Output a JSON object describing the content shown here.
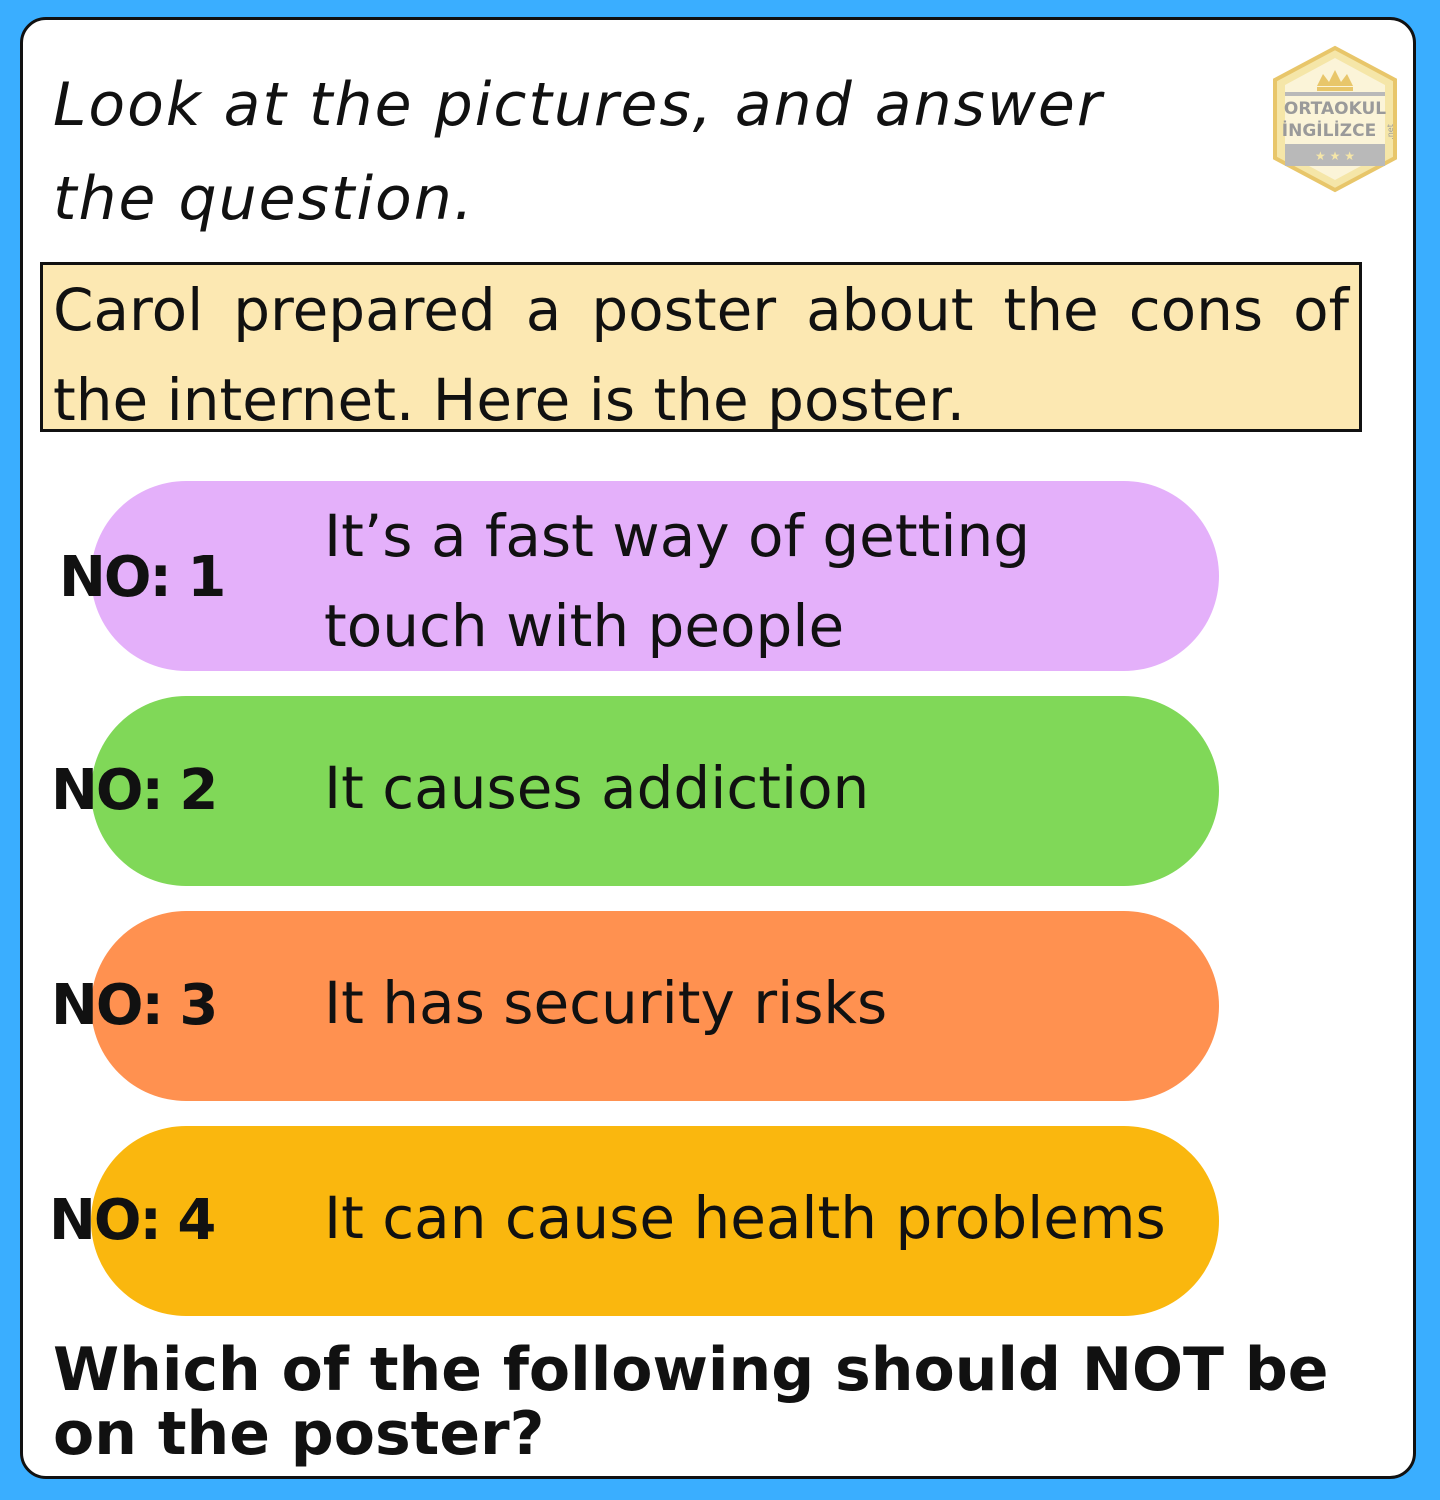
{
  "instruction": "Look at the pictures, and answer the question.",
  "logo": {
    "line1": "ORTAOKUL",
    "line2": "İNGİLİZCE",
    "suffix": ".net",
    "colors": {
      "hex": "#f5e6a8",
      "stroke": "#e8c66a",
      "band": "#b9b9b9"
    }
  },
  "context": "Carol prepared a poster about the cons of the internet. Here is the poster.",
  "options": [
    {
      "label": "NO: 1",
      "text_line1": "It’s a fast way of getting",
      "text_line2": "touch with people",
      "color": "#e4b0fa"
    },
    {
      "label": "NO: 2",
      "text": "It causes addiction",
      "color": "#80d858"
    },
    {
      "label": "NO: 3",
      "text": "It has security risks",
      "color": "#ff9150"
    },
    {
      "label": "NO: 4",
      "text": "It can cause health problems",
      "color": "#fab70e"
    }
  ],
  "question": "Which of the following should NOT be on the poster?",
  "colors": {
    "background": "#3aaeff",
    "card": "#ffffff",
    "context_box": "#fce8b2"
  }
}
